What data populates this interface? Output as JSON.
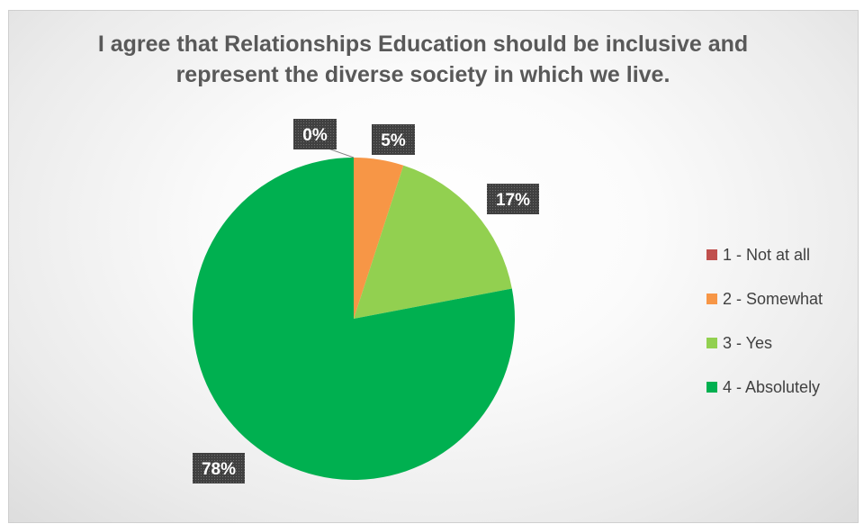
{
  "chart_data": {
    "type": "pie",
    "title": "I agree that Relationships Education should be inclusive and represent the diverse society in which we live.",
    "categories": [
      "1 - Not at all",
      "2 - Somewhat",
      "3 - Yes",
      "4 - Absolutely"
    ],
    "values": [
      0,
      5,
      17,
      78
    ],
    "data_labels": [
      "0%",
      "5%",
      "17%",
      "78%"
    ],
    "colors": [
      "#c0504d",
      "#f79646",
      "#92d050",
      "#00b050"
    ],
    "legend_position": "right",
    "data_label_style": "white bold text on dark dotted box"
  }
}
